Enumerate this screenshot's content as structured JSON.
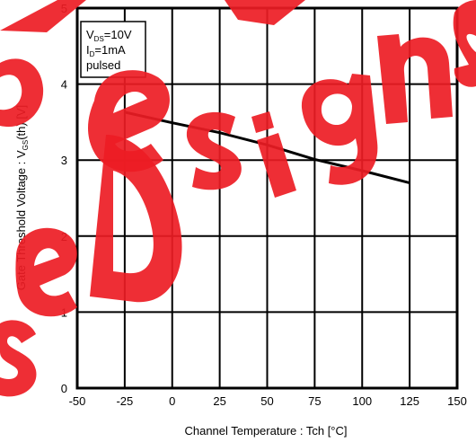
{
  "watermark": {
    "color": "#ed1c24"
  },
  "chart_data": {
    "type": "line",
    "title": "",
    "xlabel": "Channel Temperature :  Tch [°C]",
    "ylabel": "Gate Threshold Voltage :  V",
    "ylabel_sub": "GS",
    "ylabel_tail": "(th) [V]",
    "xlim": [
      -50,
      150
    ],
    "ylim": [
      0,
      5
    ],
    "x_ticks": [
      -50,
      -25,
      0,
      25,
      50,
      75,
      100,
      125,
      150
    ],
    "y_ticks": [
      0,
      1,
      2,
      3,
      4,
      5
    ],
    "x_tick_labels": [
      "-50",
      "-25",
      "0",
      "25",
      "50",
      "75",
      "100",
      "125",
      "150"
    ],
    "y_tick_labels": [
      "0",
      "1",
      "2",
      "3",
      "4",
      "5"
    ],
    "grid": true,
    "legend_position": "top-left",
    "legend": {
      "line1_main": "V",
      "line1_sub": "DS",
      "line1_tail": "=10V",
      "line2_main": "I",
      "line2_sub": "D",
      "line2_tail": "=1mA",
      "line3": "pulsed"
    },
    "series": [
      {
        "x": [
          -25,
          0,
          25,
          50,
          75,
          100,
          125
        ],
        "y": [
          3.63,
          3.49,
          3.36,
          3.2,
          3.01,
          2.86,
          2.7
        ]
      }
    ]
  }
}
